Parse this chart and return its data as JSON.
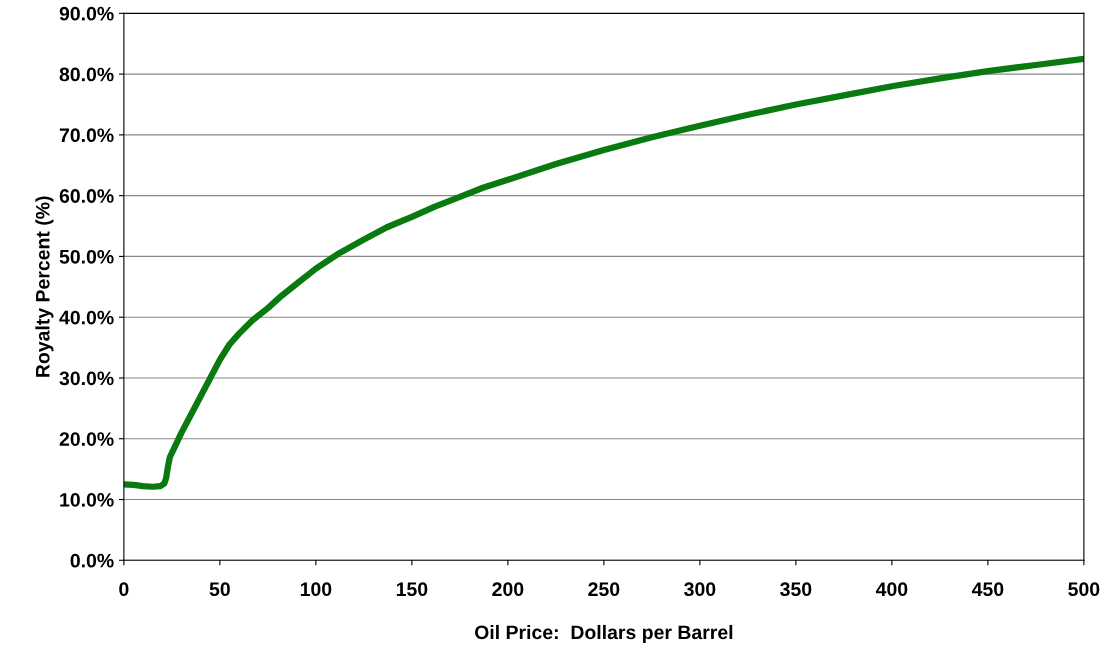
{
  "chart_data": {
    "type": "line",
    "xlabel": "Oil Price:  Dollars per Barrel",
    "ylabel": "Royalty Percent (%)",
    "series": [
      {
        "color": "#087a0f",
        "x": [
          0,
          5,
          10,
          15,
          19,
          21,
          22,
          23,
          24,
          27,
          30,
          35,
          40,
          45,
          50,
          55,
          60,
          67,
          75,
          82,
          90,
          100,
          112,
          125,
          137,
          150,
          162,
          175,
          187,
          200,
          225,
          250,
          275,
          300,
          325,
          350,
          375,
          400,
          425,
          450,
          475,
          500
        ],
        "values": [
          12.5,
          12.4,
          12.2,
          12.1,
          12.2,
          12.6,
          13.5,
          15.5,
          17.0,
          19.0,
          21.0,
          24.0,
          27.0,
          30.0,
          33.0,
          35.5,
          37.3,
          39.5,
          41.5,
          43.5,
          45.5,
          48.0,
          50.5,
          52.8,
          54.8,
          56.5,
          58.2,
          59.8,
          61.3,
          62.6,
          65.2,
          67.5,
          69.6,
          71.5,
          73.3,
          75.0,
          76.5,
          78.0,
          79.3,
          80.5,
          81.5,
          82.5
        ]
      }
    ],
    "xlim": [
      0,
      500
    ],
    "xticks": [
      0,
      50,
      100,
      150,
      200,
      250,
      300,
      350,
      400,
      450,
      500
    ],
    "ylim": [
      0,
      90
    ],
    "yticks": [
      {
        "value": 0,
        "label": "0.0%"
      },
      {
        "value": 10,
        "label": "10.0%"
      },
      {
        "value": 20,
        "label": "20.0%"
      },
      {
        "value": 30,
        "label": "30.0%"
      },
      {
        "value": 40,
        "label": "40.0%"
      },
      {
        "value": 50,
        "label": "50.0%"
      },
      {
        "value": 60,
        "label": "60.0%"
      },
      {
        "value": 70,
        "label": "70.0%"
      },
      {
        "value": 80,
        "label": "80.0%"
      },
      {
        "value": 90,
        "label": "90.0%"
      }
    ],
    "grid": "y",
    "marker": "none",
    "line_style": "solid"
  }
}
